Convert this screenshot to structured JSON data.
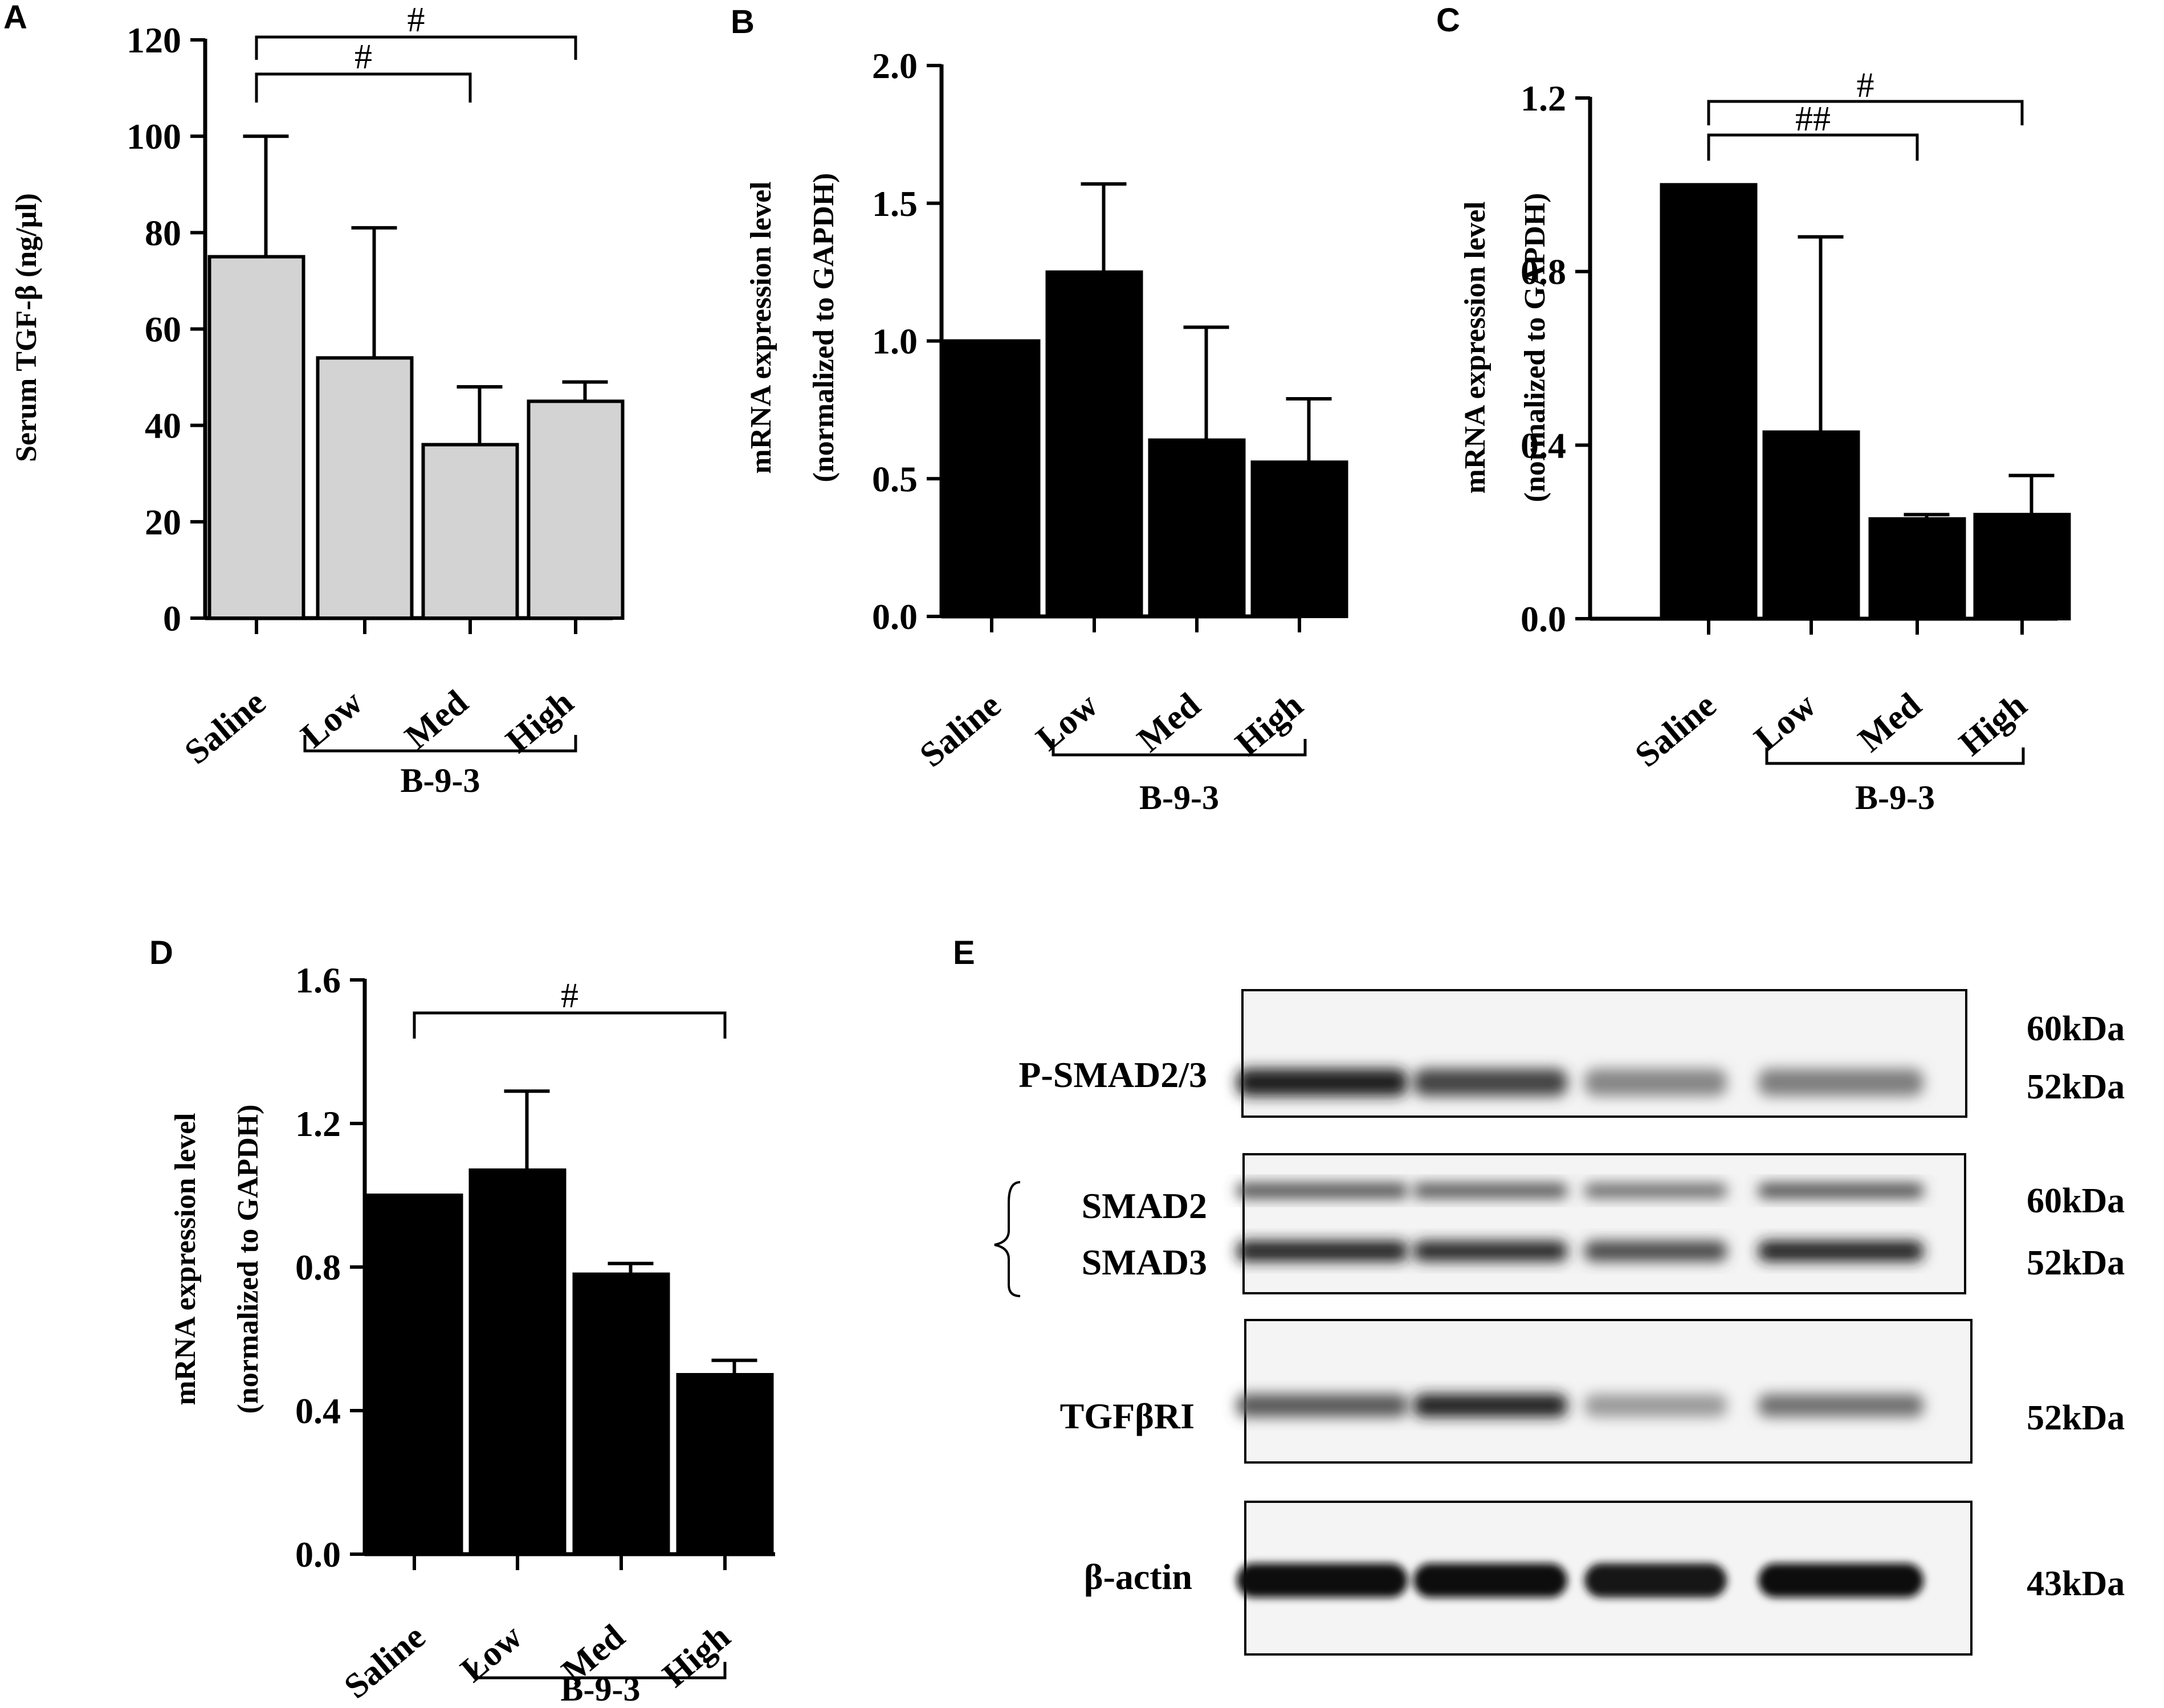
{
  "figure": {
    "group_label": "B-9-3",
    "categories": [
      "Saline",
      "Low",
      "Med",
      "High"
    ]
  },
  "chart_data": [
    {
      "panel": "A",
      "type": "bar",
      "categories": [
        "Saline",
        "Low",
        "Med",
        "High"
      ],
      "values": [
        75,
        54,
        36,
        45
      ],
      "errors": [
        25,
        27,
        12,
        4
      ],
      "ylabel": "Serum TGF-β (ng/μl)",
      "ylim": [
        0,
        120
      ],
      "yticks": [
        0,
        20,
        40,
        60,
        80,
        100,
        120
      ],
      "ytick_labels": [
        "0",
        "20",
        "40",
        "60",
        "80",
        "100",
        "120"
      ],
      "bar_color": "#d3d3d3",
      "group_label": "B-9-3",
      "significance": [
        {
          "from": 0,
          "to": 2,
          "label": "#"
        },
        {
          "from": 0,
          "to": 3,
          "label": "#"
        }
      ]
    },
    {
      "panel": "B",
      "type": "bar",
      "categories": [
        "Saline",
        "Low",
        "Med",
        "High"
      ],
      "values": [
        1.0,
        1.25,
        0.64,
        0.56
      ],
      "errors": [
        0,
        0.32,
        0.41,
        0.23
      ],
      "ylabel": "mRNA expression level",
      "ylabel2": "(normalized to GAPDH)",
      "ylim": [
        0,
        2.0
      ],
      "yticks": [
        0,
        0.5,
        1.0,
        1.5,
        2.0
      ],
      "ytick_labels": [
        "0.0",
        "0.5",
        "1.0",
        "1.5",
        "2.0"
      ],
      "bar_color": "#000000",
      "group_label": "B-9-3",
      "significance": []
    },
    {
      "panel": "C",
      "type": "bar",
      "categories": [
        "Saline",
        "Low",
        "Med",
        "High"
      ],
      "values": [
        1.0,
        0.43,
        0.23,
        0.24
      ],
      "errors": [
        0,
        0.45,
        0.01,
        0.09
      ],
      "ylabel": "mRNA expression level",
      "ylabel2": "(normalized to GAPDH)",
      "ylim": [
        0,
        1.2
      ],
      "yticks": [
        0,
        0.4,
        0.8,
        1.2
      ],
      "ytick_labels": [
        "0.0",
        "0.4",
        "0.8",
        "1.2"
      ],
      "bar_color": "#000000",
      "group_label": "B-9-3",
      "significance": [
        {
          "from": 0,
          "to": 2,
          "label": "##"
        },
        {
          "from": 0,
          "to": 3,
          "label": "#"
        }
      ]
    },
    {
      "panel": "D",
      "type": "bar",
      "categories": [
        "Saline",
        "Low",
        "Med",
        "High"
      ],
      "values": [
        1.0,
        1.07,
        0.78,
        0.5
      ],
      "errors": [
        0,
        0.22,
        0.03,
        0.04
      ],
      "ylabel": "mRNA expression level",
      "ylabel2": "(normalized to GAPDH)",
      "ylim": [
        0,
        1.6
      ],
      "yticks": [
        0,
        0.4,
        0.8,
        1.2,
        1.6
      ],
      "ytick_labels": [
        "0.0",
        "0.4",
        "0.8",
        "1.2",
        "1.6"
      ],
      "bar_color": "#000000",
      "group_label": "B-9-3",
      "significance": [
        {
          "from": 0,
          "to": 3,
          "label": "#"
        }
      ]
    }
  ],
  "western_blot": {
    "panel": "E",
    "rows": [
      {
        "name": "P-SMAD2/3",
        "labels": [
          "P-SMAD2/3"
        ],
        "kda": [
          "60kDa",
          "52kDa"
        ],
        "band_intensity": [
          0.92,
          0.72,
          0.38,
          0.42
        ]
      },
      {
        "name": "SMAD2/SMAD3",
        "labels": [
          "SMAD2",
          "SMAD3"
        ],
        "kda": [
          "60kDa",
          "52kDa"
        ],
        "band_intensity": [
          0.9,
          0.85,
          0.7,
          0.9
        ]
      },
      {
        "name": "TGFβRI",
        "labels": [
          "TGFβRI"
        ],
        "kda": [
          "52kDa"
        ],
        "band_intensity": [
          0.62,
          0.92,
          0.28,
          0.5
        ]
      },
      {
        "name": "β-actin",
        "labels": [
          "β-actin"
        ],
        "kda": [
          "43kDa"
        ],
        "band_intensity": [
          1.0,
          1.0,
          0.95,
          0.97
        ]
      }
    ]
  }
}
